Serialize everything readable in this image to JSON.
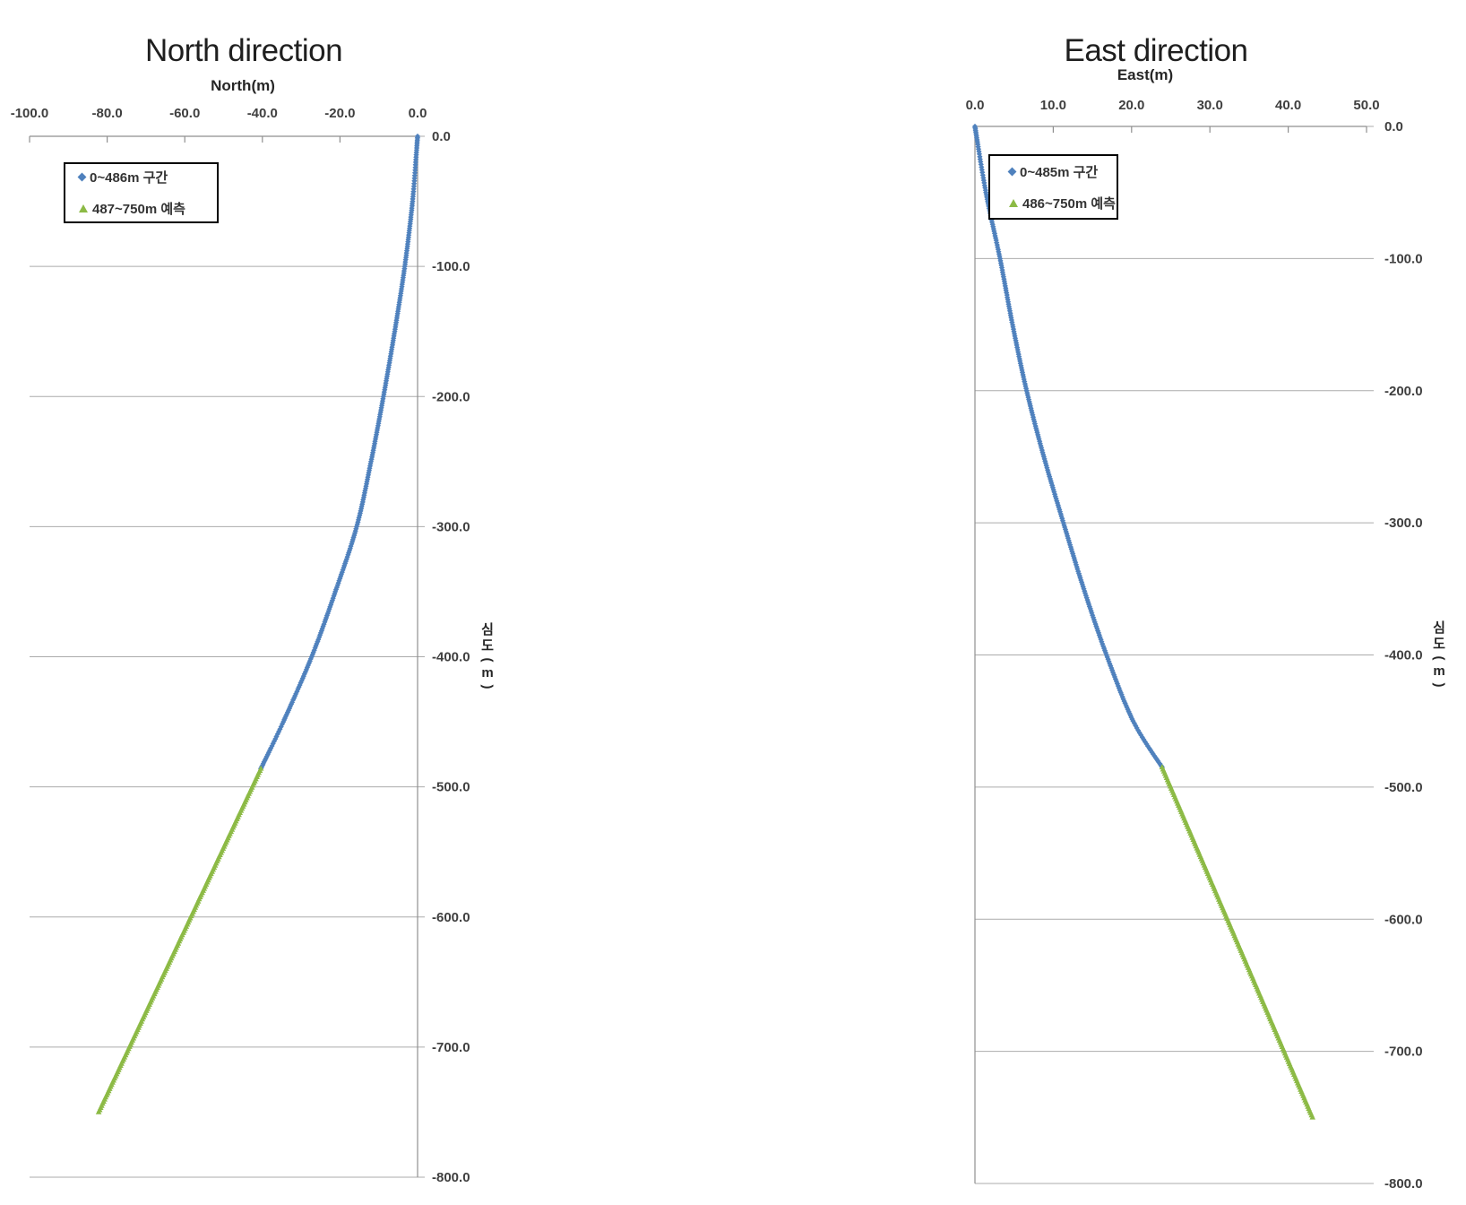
{
  "chart_data": [
    {
      "type": "scatter",
      "title": "North direction",
      "xlabel": "North(m)",
      "ylabel": "심도(m)",
      "xlim": [
        -100.0,
        0.0
      ],
      "ylim": [
        -800.0,
        0.0
      ],
      "xtick_labels": [
        "-100.0",
        "-80.0",
        "-60.0",
        "-40.0",
        "-20.0",
        "0.0"
      ],
      "ytick_labels": [
        "0.0",
        "-100.0",
        "-200.0",
        "-300.0",
        "-400.0",
        "-500.0",
        "-600.0",
        "-700.0",
        "-800.0"
      ],
      "grid": true,
      "legend_position": "inside-top-left",
      "colors": {
        "measured": "#4F81BD",
        "predicted": "#8CBA45",
        "gridline": "#ABABAB",
        "axis": "#8F8F8F"
      },
      "series": [
        {
          "name": "0~486m 구간",
          "color": "#4F81BD",
          "marker": "diamond",
          "points": [
            [
              0.0,
              0.0
            ],
            [
              -1.3,
              -50
            ],
            [
              -3.3,
              -100
            ],
            [
              -5.9,
              -150
            ],
            [
              -8.8,
              -200
            ],
            [
              -12.0,
              -250
            ],
            [
              -15.7,
              -300
            ],
            [
              -21.2,
              -350
            ],
            [
              -27.3,
              -400
            ],
            [
              -34.6,
              -450
            ],
            [
              -40.4,
              -486
            ]
          ]
        },
        {
          "name": "487~750m 예측",
          "color": "#8CBA45",
          "marker": "triangle",
          "points": [
            [
              -40.4,
              -486
            ],
            [
              -82.2,
              -750
            ]
          ]
        }
      ]
    },
    {
      "type": "scatter",
      "title": "East direction",
      "xlabel": "East(m)",
      "ylabel": "심도(m)",
      "xlim": [
        0.0,
        50.0
      ],
      "ylim": [
        -800.0,
        0.0
      ],
      "xtick_labels": [
        "0.0",
        "10.0",
        "20.0",
        "30.0",
        "40.0",
        "50.0"
      ],
      "ytick_labels": [
        "0.0",
        "-100.0",
        "-200.0",
        "-300.0",
        "-400.0",
        "-500.0",
        "-600.0",
        "-700.0",
        "-800.0"
      ],
      "grid": true,
      "legend_position": "inside-top-left",
      "colors": {
        "measured": "#4F81BD",
        "predicted": "#8CBA45",
        "gridline": "#ABABAB",
        "axis": "#8F8F8F"
      },
      "series": [
        {
          "name": "0~485m 구간",
          "color": "#4F81BD",
          "marker": "diamond",
          "points": [
            [
              0.0,
              0.0
            ],
            [
              1.4,
              -50
            ],
            [
              3.2,
              -100
            ],
            [
              4.8,
              -150
            ],
            [
              6.6,
              -200
            ],
            [
              8.8,
              -250
            ],
            [
              11.3,
              -300
            ],
            [
              13.9,
              -350
            ],
            [
              16.8,
              -400
            ],
            [
              20.2,
              -450
            ],
            [
              23.9,
              -485
            ]
          ]
        },
        {
          "name": "486~750m 예측",
          "color": "#8CBA45",
          "marker": "triangle",
          "points": [
            [
              23.9,
              -485
            ],
            [
              43.1,
              -750
            ]
          ]
        }
      ]
    }
  ]
}
